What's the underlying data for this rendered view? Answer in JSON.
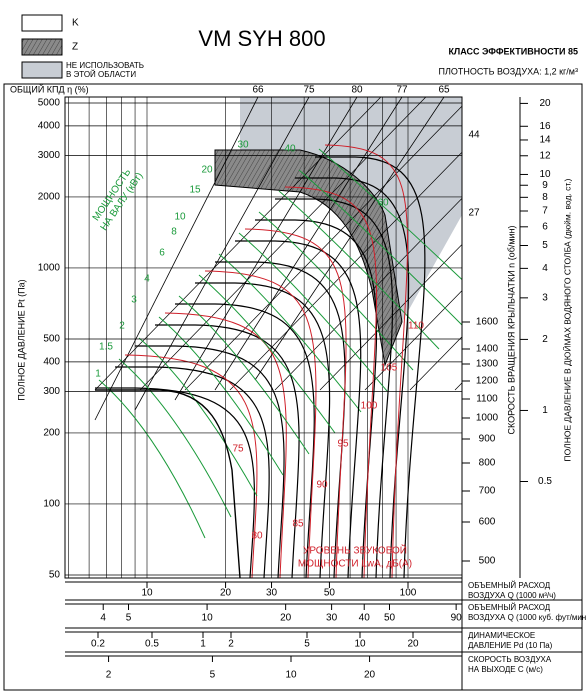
{
  "legend": {
    "k": "K",
    "z": "Z",
    "na": [
      "НЕ ИСПОЛЬЗОВАТЬ",
      "В ЭТОЙ ОБЛАСТИ"
    ]
  },
  "title": "VM SYH 800",
  "efficiency_class": "КЛАСС ЭФФЕКТИВНОСТИ 85",
  "air_density": "ПЛОТНОСТЬ ВОЗДУХА: 1,2 кг/м³",
  "eff_axis_title": "ОБЩИЙ КПД η (%)",
  "eff_labels": [
    66,
    75,
    80,
    77,
    65
  ],
  "y_axis_title": "ПОЛНОЕ ДАВЛЕНИЕ Pt (Па)",
  "yticks": [
    5000,
    4000,
    3000,
    2000,
    1000,
    500,
    400,
    300,
    200,
    100,
    50
  ],
  "power_title": [
    "МОЩНОСТЬ",
    "НА ВАЛУ (кВт)"
  ],
  "power_labels": [
    "1",
    "1.5",
    "2",
    "3",
    "4",
    "6",
    "8",
    "10",
    "15",
    "20",
    "30",
    "40",
    "60"
  ],
  "sound_title": [
    "УРОВЕНЬ ЗВУКОВОЙ",
    "МОЩНОСТИ LwA, дБ(A)"
  ],
  "sound_labels": [
    75,
    80,
    85,
    90,
    95,
    100,
    105,
    110
  ],
  "blade_labels": [
    44,
    27
  ],
  "rpm_title": "СКОРОСТЬ ВРАЩЕНИЯ КРЫЛЬЧАТКИ n (об/мин)",
  "rpm_ticks": [
    1600,
    1400,
    1300,
    1200,
    1100,
    1000,
    900,
    800,
    700,
    600,
    500
  ],
  "inwg_title": "ПОЛНОЕ ДАВЛЕНИЕ В ДЮЙМАХ ВОДЯНОГО СТОЛБА (дюйм. вод. ст.)",
  "inwg_ticks": [
    20,
    16,
    14,
    12,
    10,
    9,
    8,
    7,
    6,
    5,
    4,
    3,
    2,
    1,
    0.5
  ],
  "scales": [
    {
      "label": [
        "ОБЪЕМНЫЙ РАСХОД",
        "ВОЗДУХА Q (1000 м³/ч)"
      ],
      "ticks": [
        10,
        20,
        30,
        50,
        100
      ]
    },
    {
      "label": [
        "ОБЪЕМНЫЙ РАСХОД",
        "ВОЗДУХА Q (1000 куб. фут/мин)"
      ],
      "ticks": [
        4,
        5,
        10,
        20,
        30,
        40,
        50,
        90
      ]
    },
    {
      "label": [
        "ДИНАМИЧЕСКОЕ",
        "ДАВЛЕНИЕ Pd (10 Па)"
      ],
      "ticks": [
        0.2,
        0.5,
        1,
        2,
        5,
        10,
        20
      ]
    },
    {
      "label": [
        "СКОРОСТЬ ВОЗДУХА",
        "НА ВЫХОДЕ C (м/с)"
      ],
      "ticks": [
        2,
        5,
        10,
        20
      ]
    }
  ]
}
